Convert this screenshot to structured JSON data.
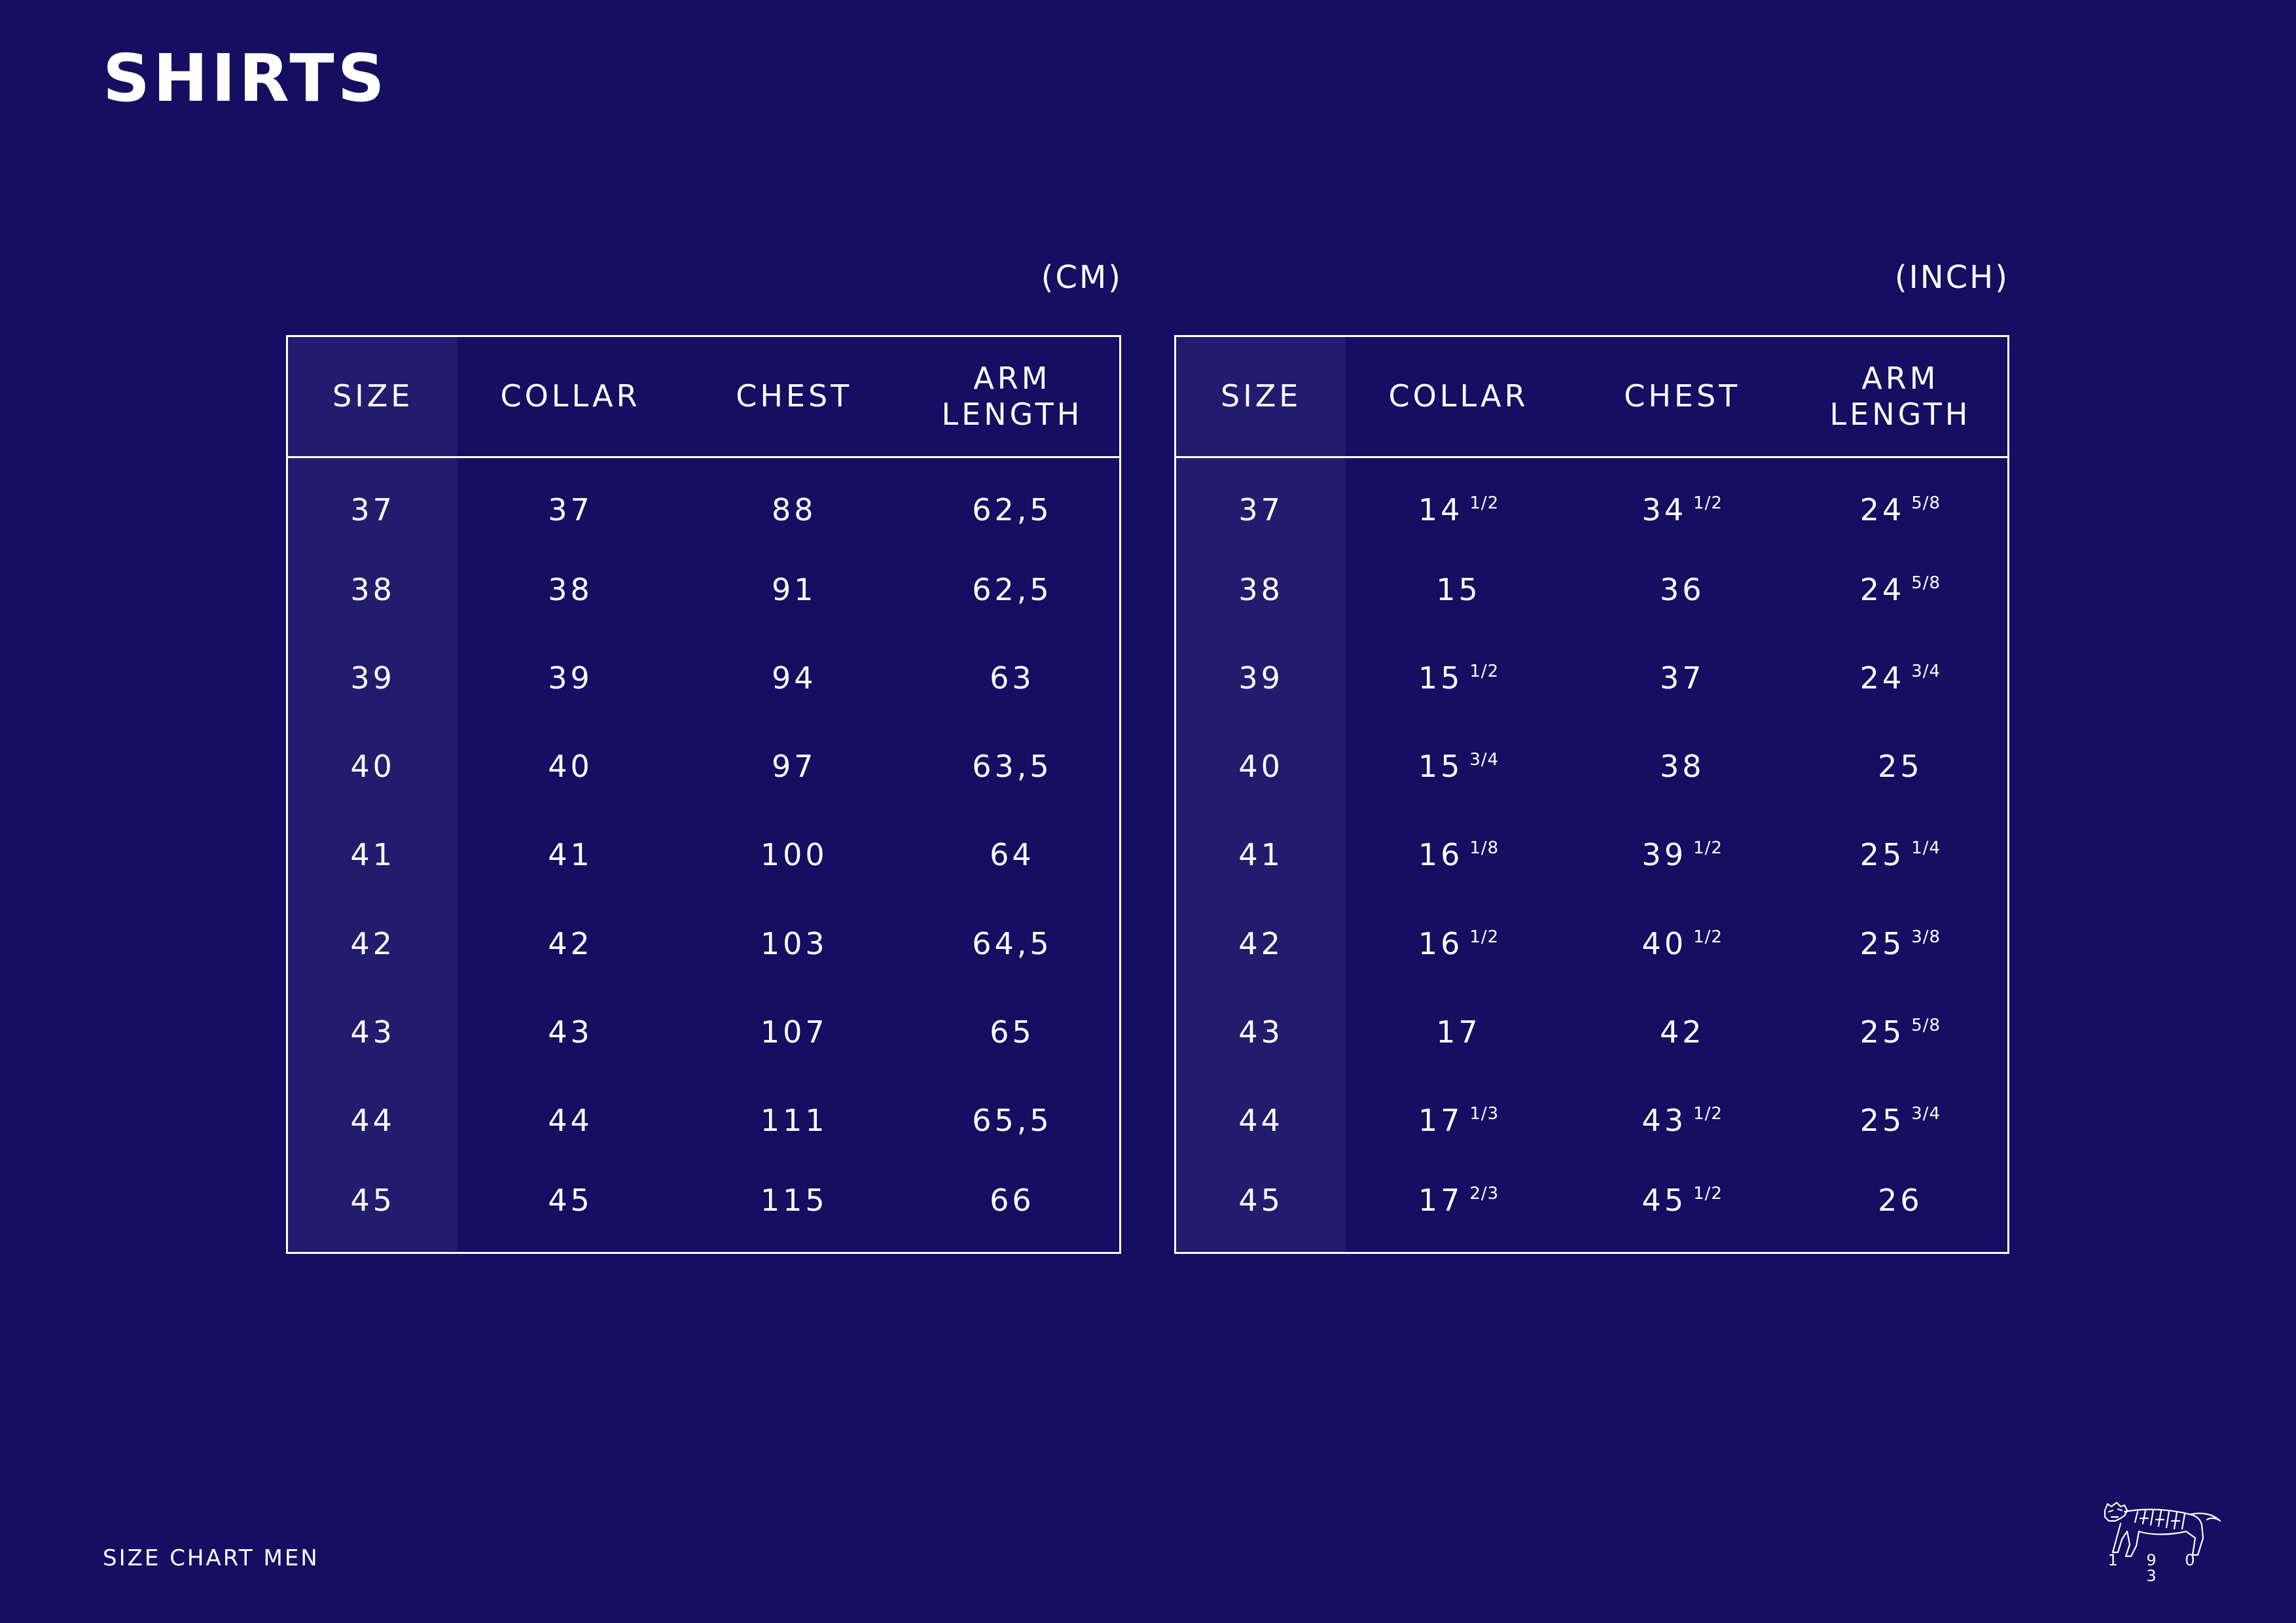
{
  "title": "SHIRTS",
  "footer": "SIZE CHART MEN",
  "logo_year": "1 9 0 3",
  "tables": [
    {
      "unit": "(CM)",
      "headers": [
        "SIZE",
        "COLLAR",
        "CHEST",
        "ARM LENGTH"
      ],
      "rows": [
        [
          {
            "main": "37"
          },
          {
            "main": "37"
          },
          {
            "main": "88"
          },
          {
            "main": "62,5"
          }
        ],
        [
          {
            "main": "38"
          },
          {
            "main": "38"
          },
          {
            "main": "91"
          },
          {
            "main": "62,5"
          }
        ],
        [
          {
            "main": "39"
          },
          {
            "main": "39"
          },
          {
            "main": "94"
          },
          {
            "main": "63"
          }
        ],
        [
          {
            "main": "40"
          },
          {
            "main": "40"
          },
          {
            "main": "97"
          },
          {
            "main": "63,5"
          }
        ],
        [
          {
            "main": "41"
          },
          {
            "main": "41"
          },
          {
            "main": "100"
          },
          {
            "main": "64"
          }
        ],
        [
          {
            "main": "42"
          },
          {
            "main": "42"
          },
          {
            "main": "103"
          },
          {
            "main": "64,5"
          }
        ],
        [
          {
            "main": "43"
          },
          {
            "main": "43"
          },
          {
            "main": "107"
          },
          {
            "main": "65"
          }
        ],
        [
          {
            "main": "44"
          },
          {
            "main": "44"
          },
          {
            "main": "111"
          },
          {
            "main": "65,5"
          }
        ],
        [
          {
            "main": "45"
          },
          {
            "main": "45"
          },
          {
            "main": "115"
          },
          {
            "main": "66"
          }
        ]
      ]
    },
    {
      "unit": "(INCH)",
      "headers": [
        "SIZE",
        "COLLAR",
        "CHEST",
        "ARM LENGTH"
      ],
      "rows": [
        [
          {
            "main": "37"
          },
          {
            "main": "14",
            "frac": "1/2"
          },
          {
            "main": "34",
            "frac": "1/2"
          },
          {
            "main": "24",
            "frac": "5/8"
          }
        ],
        [
          {
            "main": "38"
          },
          {
            "main": "15"
          },
          {
            "main": "36"
          },
          {
            "main": "24",
            "frac": "5/8"
          }
        ],
        [
          {
            "main": "39"
          },
          {
            "main": "15",
            "frac": "1/2"
          },
          {
            "main": "37"
          },
          {
            "main": "24",
            "frac": "3/4"
          }
        ],
        [
          {
            "main": "40"
          },
          {
            "main": "15",
            "frac": "3/4"
          },
          {
            "main": "38"
          },
          {
            "main": "25"
          }
        ],
        [
          {
            "main": "41"
          },
          {
            "main": "16",
            "frac": "1/8"
          },
          {
            "main": "39",
            "frac": "1/2"
          },
          {
            "main": "25",
            "frac": "1/4"
          }
        ],
        [
          {
            "main": "42"
          },
          {
            "main": "16",
            "frac": "1/2"
          },
          {
            "main": "40",
            "frac": "1/2"
          },
          {
            "main": "25",
            "frac": "3/8"
          }
        ],
        [
          {
            "main": "43"
          },
          {
            "main": "17"
          },
          {
            "main": "42"
          },
          {
            "main": "25",
            "frac": "5/8"
          }
        ],
        [
          {
            "main": "44"
          },
          {
            "main": "17",
            "frac": "1/3"
          },
          {
            "main": "43",
            "frac": "1/2"
          },
          {
            "main": "25",
            "frac": "3/4"
          }
        ],
        [
          {
            "main": "45"
          },
          {
            "main": "17",
            "frac": "2/3"
          },
          {
            "main": "45",
            "frac": "1/2"
          },
          {
            "main": "26"
          }
        ]
      ]
    }
  ]
}
